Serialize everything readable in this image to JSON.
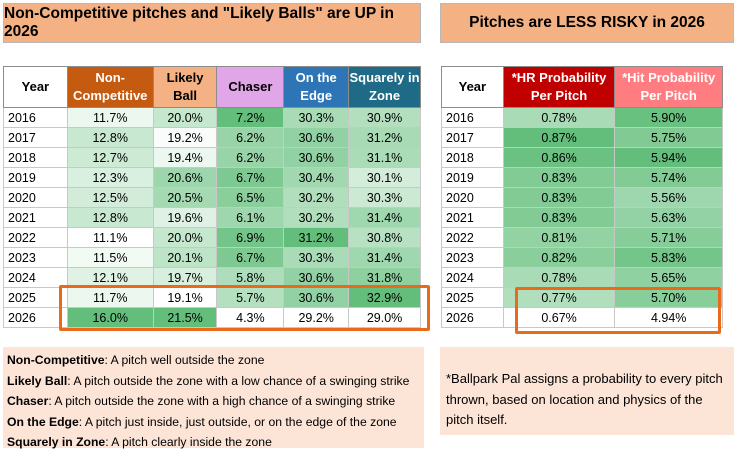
{
  "banner_left": "Non-Competitive pitches and \"Likely Balls\" are UP in 2026",
  "banner_right": "Pitches are LESS RISKY in 2026",
  "left_table": {
    "headers": [
      {
        "label": "Year",
        "bg": "#ffffff",
        "color": "#000000"
      },
      {
        "label": "Non-Competitive",
        "bg": "#c55a11",
        "color": "#ffffff"
      },
      {
        "label": "Likely Ball",
        "bg": "#f4b183",
        "color": "#000000"
      },
      {
        "label": "Chaser",
        "bg": "#e1a6e8",
        "color": "#000000"
      },
      {
        "label": "On the Edge",
        "bg": "#2e75b6",
        "color": "#ffffff"
      },
      {
        "label": "Squarely in Zone",
        "bg": "#1f6b87",
        "color": "#ffffff"
      }
    ],
    "rows": [
      [
        "2016",
        "11.7%",
        "20.0%",
        "7.2%",
        "30.3%",
        "30.9%"
      ],
      [
        "2017",
        "12.8%",
        "19.2%",
        "6.2%",
        "30.6%",
        "31.2%"
      ],
      [
        "2018",
        "12.7%",
        "19.4%",
        "6.2%",
        "30.6%",
        "31.1%"
      ],
      [
        "2019",
        "12.3%",
        "20.6%",
        "6.7%",
        "30.4%",
        "30.1%"
      ],
      [
        "2020",
        "12.5%",
        "20.5%",
        "6.5%",
        "30.2%",
        "30.3%"
      ],
      [
        "2021",
        "12.8%",
        "19.6%",
        "6.1%",
        "30.2%",
        "31.4%"
      ],
      [
        "2022",
        "11.1%",
        "20.0%",
        "6.9%",
        "31.2%",
        "30.8%"
      ],
      [
        "2023",
        "11.5%",
        "20.1%",
        "6.7%",
        "30.3%",
        "31.4%"
      ],
      [
        "2024",
        "12.1%",
        "19.7%",
        "5.8%",
        "30.6%",
        "31.8%"
      ],
      [
        "2025",
        "11.7%",
        "19.1%",
        "5.7%",
        "30.6%",
        "32.9%"
      ],
      [
        "2026",
        "16.0%",
        "21.5%",
        "4.3%",
        "29.2%",
        "29.0%"
      ]
    ]
  },
  "right_table": {
    "headers": [
      {
        "label": "Year",
        "bg": "#ffffff",
        "color": "#000000"
      },
      {
        "label": "*HR Probability Per Pitch",
        "bg": "#c00000",
        "color": "#ffffff"
      },
      {
        "label": "*Hit Probability Per Pitch",
        "bg": "#ff7c80",
        "color": "#ffffff"
      }
    ],
    "rows": [
      [
        "2016",
        "0.78%",
        "5.90%"
      ],
      [
        "2017",
        "0.87%",
        "5.75%"
      ],
      [
        "2018",
        "0.86%",
        "5.94%"
      ],
      [
        "2019",
        "0.83%",
        "5.74%"
      ],
      [
        "2020",
        "0.83%",
        "5.56%"
      ],
      [
        "2021",
        "0.83%",
        "5.63%"
      ],
      [
        "2022",
        "0.81%",
        "5.71%"
      ],
      [
        "2023",
        "0.82%",
        "5.83%"
      ],
      [
        "2024",
        "0.78%",
        "5.65%"
      ],
      [
        "2025",
        "0.77%",
        "5.70%"
      ],
      [
        "2026",
        "0.67%",
        "4.94%"
      ]
    ]
  },
  "definitions": [
    {
      "term": "Non-Competitive",
      "text": ": A pitch well outside the zone"
    },
    {
      "term": "Likely Ball",
      "text": ": A pitch outside the zone with a low chance of a swinging strike"
    },
    {
      "term": "Chaser",
      "text": ": A pitch outside the zone with a high chance of a swinging strike"
    },
    {
      "term": "On the Edge",
      "text": ": A pitch just inside, just outside, or on the edge of the zone"
    },
    {
      "term": "Squarely in Zone",
      "text": ": A pitch clearly inside the zone"
    }
  ],
  "footnote": "*Ballpark Pal assigns a probability to every pitch thrown, based on location and physics of the pitch itself.",
  "colors": {
    "banner": "#f4b183",
    "notes_bg": "#fce4d6",
    "highlight_outline": "#ea6a1c",
    "heat_low": "#ffffff",
    "heat_high": "#63be7b"
  }
}
